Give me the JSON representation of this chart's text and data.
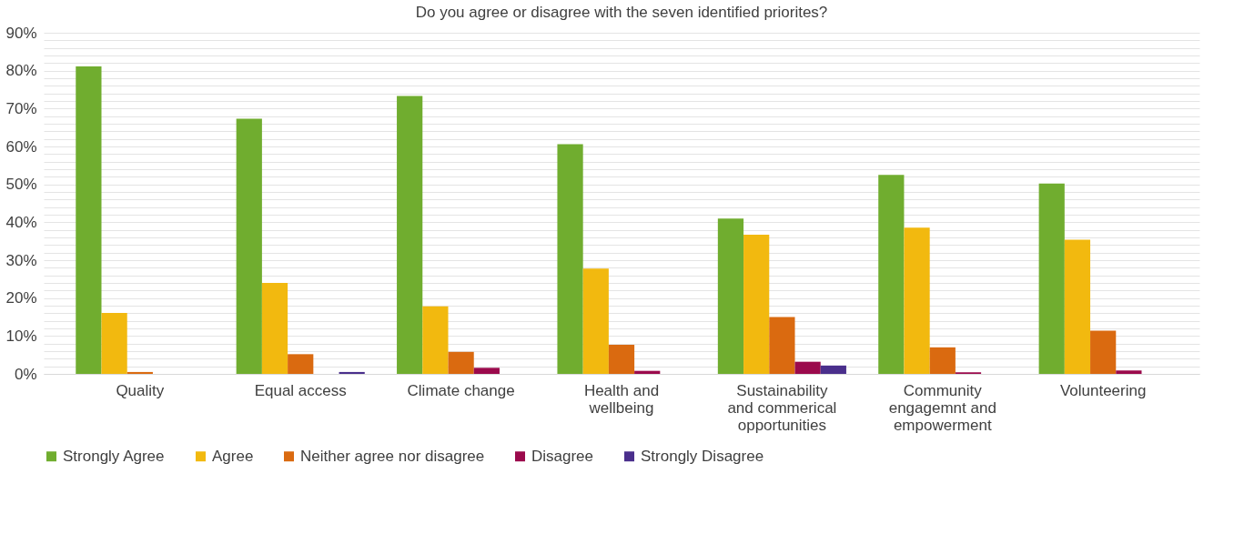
{
  "chart_data": {
    "type": "bar",
    "title": "Do you agree or disagree with the seven identified priorites?",
    "categories": [
      "Quality",
      "Equal access",
      "Climate change",
      "Health and wellbeing",
      "Sustainability and commerical opportunities",
      "Community engagemnt and empowerment",
      "Volunteering"
    ],
    "series": [
      {
        "name": "Strongly Agree",
        "color": "#70ad2f",
        "values": [
          81.1,
          67.3,
          73.3,
          60.6,
          41.0,
          52.5,
          50.2
        ]
      },
      {
        "name": "Agree",
        "color": "#f2b90f",
        "values": [
          16.1,
          24.0,
          17.8,
          27.8,
          36.7,
          38.6,
          35.4
        ]
      },
      {
        "name": "Neither agree nor disagree",
        "color": "#da6a10",
        "values": [
          0.5,
          5.2,
          5.8,
          7.7,
          15.0,
          7.0,
          11.4
        ]
      },
      {
        "name": "Disagree",
        "color": "#9b0a4c",
        "values": [
          0,
          0,
          1.6,
          0.8,
          3.2,
          0.4,
          0.9
        ]
      },
      {
        "name": "Strongly Disagree",
        "color": "#4a2f8c",
        "values": [
          0,
          0.5,
          0,
          0,
          2.2,
          0,
          0
        ]
      }
    ],
    "ylim": [
      0,
      90
    ],
    "yticks": [
      {
        "value": 0,
        "label": "0%"
      },
      {
        "value": 2,
        "label": null
      },
      {
        "value": 4,
        "label": null
      },
      {
        "value": 6,
        "label": null
      },
      {
        "value": 8,
        "label": null
      },
      {
        "value": 10,
        "label": "10%"
      },
      {
        "value": 12,
        "label": null
      },
      {
        "value": 14,
        "label": null
      },
      {
        "value": 16,
        "label": null
      },
      {
        "value": 18,
        "label": null
      },
      {
        "value": 20,
        "label": "20%"
      },
      {
        "value": 22,
        "label": null
      },
      {
        "value": 24,
        "label": null
      },
      {
        "value": 26,
        "label": null
      },
      {
        "value": 28,
        "label": null
      },
      {
        "value": 30,
        "label": "30%"
      },
      {
        "value": 32,
        "label": null
      },
      {
        "value": 34,
        "label": null
      },
      {
        "value": 36,
        "label": null
      },
      {
        "value": 38,
        "label": null
      },
      {
        "value": 40,
        "label": "40%"
      },
      {
        "value": 42,
        "label": null
      },
      {
        "value": 44,
        "label": null
      },
      {
        "value": 46,
        "label": null
      },
      {
        "value": 48,
        "label": null
      },
      {
        "value": 50,
        "label": "50%"
      },
      {
        "value": 52,
        "label": null
      },
      {
        "value": 54,
        "label": null
      },
      {
        "value": 56,
        "label": null
      },
      {
        "value": 58,
        "label": null
      },
      {
        "value": 60,
        "label": "60%"
      },
      {
        "value": 62,
        "label": null
      },
      {
        "value": 64,
        "label": null
      },
      {
        "value": 66,
        "label": null
      },
      {
        "value": 68,
        "label": null
      },
      {
        "value": 70,
        "label": "70%"
      },
      {
        "value": 72,
        "label": null
      },
      {
        "value": 74,
        "label": null
      },
      {
        "value": 76,
        "label": null
      },
      {
        "value": 78,
        "label": null
      },
      {
        "value": 80,
        "label": "80%"
      },
      {
        "value": 82,
        "label": null
      },
      {
        "value": 84,
        "label": null
      },
      {
        "value": 86,
        "label": null
      },
      {
        "value": 88,
        "label": null
      },
      {
        "value": 90,
        "label": "90%"
      }
    ],
    "grid": "y",
    "legend": "bottom"
  }
}
